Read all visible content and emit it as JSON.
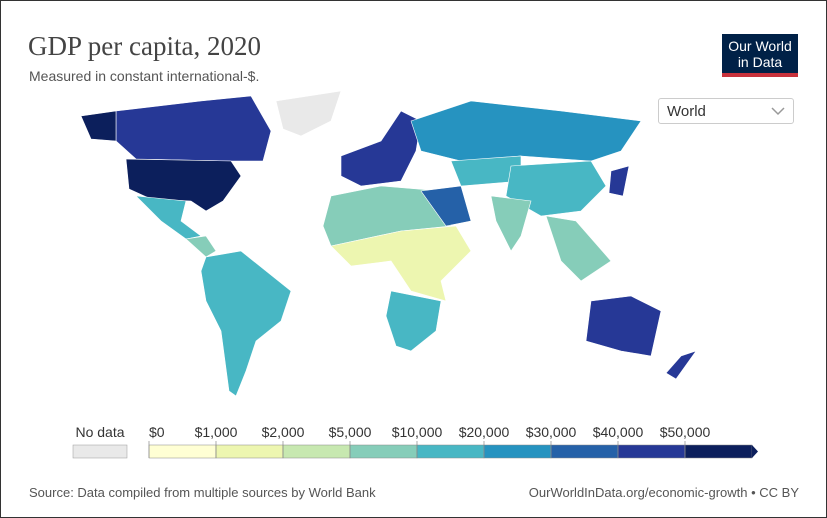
{
  "header": {
    "title": "GDP per capita, 2020",
    "subtitle": "Measured in constant international-$."
  },
  "logo": {
    "line1": "Our World",
    "line2": "in Data"
  },
  "dropdown": {
    "label": "World"
  },
  "legend": {
    "no_data": "No data",
    "no_data_color": "#e9e9e9",
    "bins": [
      {
        "label": "$0",
        "color": "#ffffd4"
      },
      {
        "label": "$1,000",
        "color": "#edf6b0"
      },
      {
        "label": "$2,000",
        "color": "#c7e8b0"
      },
      {
        "label": "$5,000",
        "color": "#86cdb9"
      },
      {
        "label": "$10,000",
        "color": "#48b7c4"
      },
      {
        "label": "$20,000",
        "color": "#2693c0"
      },
      {
        "label": "$30,000",
        "color": "#2561a8"
      },
      {
        "label": "$40,000",
        "color": "#263896"
      },
      {
        "label": "$50,000",
        "color": "#0c1f5c"
      }
    ]
  },
  "footer": {
    "source": "Source: Data compiled from multiple sources by World Bank",
    "link": "OurWorldInData.org/economic-growth • CC BY"
  }
}
